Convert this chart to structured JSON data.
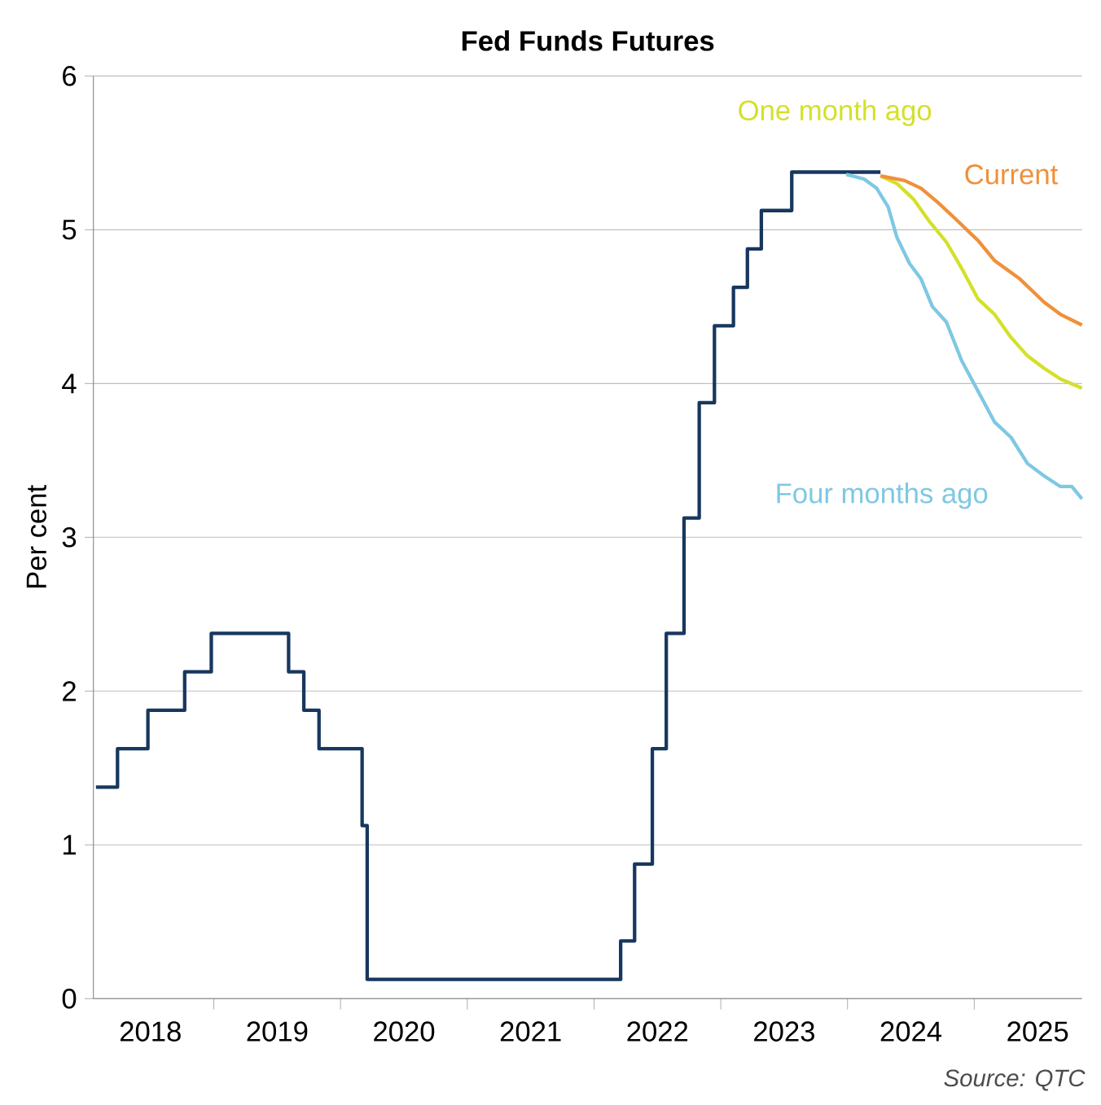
{
  "chart_data": {
    "type": "line",
    "title": "Fed Funds Futures",
    "ylabel": "Per cent",
    "annotations": [
      "Source: QTC"
    ],
    "xlim": [
      2018.05,
      2025.85
    ],
    "ylim": [
      0,
      6
    ],
    "yticks": [
      0,
      1,
      2,
      3,
      4,
      5,
      6
    ],
    "xticks": [
      {
        "value": 2018.5,
        "label": "2018"
      },
      {
        "value": 2019,
        "label": null
      },
      {
        "value": 2019.5,
        "label": "2019"
      },
      {
        "value": 2020,
        "label": null
      },
      {
        "value": 2020.5,
        "label": "2020"
      },
      {
        "value": 2021,
        "label": null
      },
      {
        "value": 2021.5,
        "label": "2021"
      },
      {
        "value": 2022,
        "label": null
      },
      {
        "value": 2022.5,
        "label": "2022"
      },
      {
        "value": 2023,
        "label": null
      },
      {
        "value": 2023.5,
        "label": "2023"
      },
      {
        "value": 2024,
        "label": null
      },
      {
        "value": 2024.5,
        "label": "2024"
      },
      {
        "value": 2025,
        "label": null
      },
      {
        "value": 2025.5,
        "label": "2025"
      }
    ],
    "grid": "y",
    "line_style": "solid",
    "series": [
      {
        "type": "step",
        "color": "#17375e",
        "x": [
          2018.07,
          2018.24,
          2018.48,
          2018.77,
          2018.98,
          2019.59,
          2019.71,
          2019.83,
          2020.17,
          2020.21,
          2022.21,
          2022.32,
          2022.46,
          2022.57,
          2022.71,
          2022.83,
          2022.95,
          2023.1,
          2023.21,
          2023.32,
          2023.56,
          2024.26
        ],
        "values": [
          1.375,
          1.625,
          1.875,
          2.125,
          2.375,
          2.125,
          1.875,
          1.625,
          1.125,
          0.125,
          0.375,
          0.875,
          1.625,
          2.375,
          3.125,
          3.875,
          4.375,
          4.625,
          4.875,
          5.125,
          5.375,
          5.375
        ]
      },
      {
        "name": "Four months ago",
        "color": "#7ec8e3",
        "x": [
          2023.99,
          2024.13,
          2024.23,
          2024.32,
          2024.39,
          2024.49,
          2024.58,
          2024.67,
          2024.78,
          2024.9,
          2025.03,
          2025.16,
          2025.29,
          2025.42,
          2025.55,
          2025.68,
          2025.77,
          2025.85
        ],
        "values": [
          5.36,
          5.33,
          5.27,
          5.15,
          4.95,
          4.78,
          4.68,
          4.5,
          4.4,
          4.15,
          3.95,
          3.75,
          3.65,
          3.48,
          3.4,
          3.33,
          3.33,
          3.25
        ]
      },
      {
        "name": "One month ago",
        "color": "#d4e02a",
        "x": [
          2024.26,
          2024.39,
          2024.52,
          2024.65,
          2024.78,
          2024.9,
          2025.03,
          2025.16,
          2025.29,
          2025.42,
          2025.55,
          2025.68,
          2025.85
        ],
        "values": [
          5.35,
          5.3,
          5.2,
          5.05,
          4.92,
          4.75,
          4.55,
          4.45,
          4.3,
          4.18,
          4.1,
          4.03,
          3.97
        ]
      },
      {
        "name": "Current",
        "color": "#f0903a",
        "x": [
          2024.26,
          2024.45,
          2024.58,
          2024.71,
          2024.84,
          2025.03,
          2025.16,
          2025.36,
          2025.55,
          2025.68,
          2025.85
        ],
        "values": [
          5.35,
          5.32,
          5.27,
          5.18,
          5.08,
          4.93,
          4.8,
          4.68,
          4.53,
          4.45,
          4.38
        ]
      }
    ]
  }
}
